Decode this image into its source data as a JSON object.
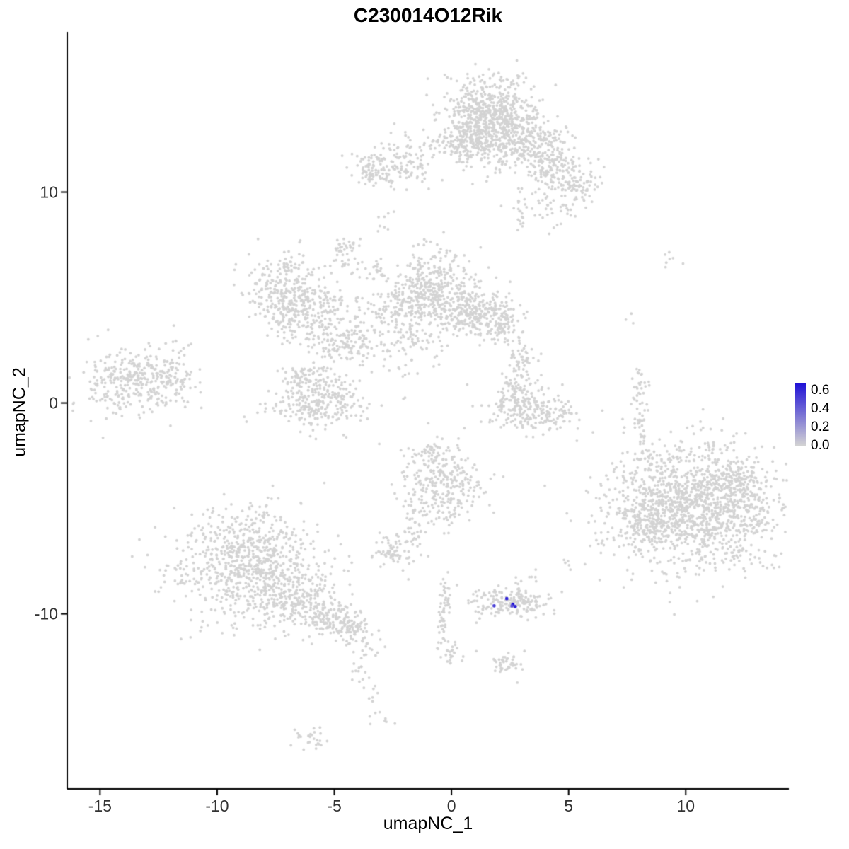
{
  "title": "C230014O12Rik",
  "x_axis": {
    "label": "umapNC_1",
    "ticks": [
      -15,
      -10,
      -5,
      0,
      5,
      10
    ]
  },
  "y_axis": {
    "label": "umapNC_2",
    "ticks": [
      -10,
      0,
      10
    ]
  },
  "legend": {
    "tick_labels": [
      "0.6",
      "0.4",
      "0.2",
      "0.0"
    ],
    "color_high": "#2012D6",
    "color_low": "#D3D3D3"
  },
  "chart_data": {
    "type": "scatter",
    "title": "C230014O12Rik",
    "xlabel": "umapNC_1",
    "ylabel": "umapNC_2",
    "xlim": [
      -16.4,
      14.4
    ],
    "ylim": [
      -18.3,
      17.6
    ],
    "legend_ticks": [
      0.6,
      0.4,
      0.2,
      0.0
    ],
    "legend_max": 0.65,
    "base_color": "#D3D3D3",
    "high_color": "#2012D6",
    "seed": 42,
    "clusters_format": "[center_x, center_y, sd_x, sd_y, n_points]",
    "clusters": [
      [
        1.6,
        13.5,
        1.05,
        0.95,
        750
      ],
      [
        0.8,
        12.3,
        0.55,
        0.45,
        120
      ],
      [
        2.9,
        12.0,
        0.7,
        0.5,
        110
      ],
      [
        4.3,
        11.1,
        0.75,
        0.6,
        160
      ],
      [
        5.3,
        10.3,
        0.45,
        0.4,
        70
      ],
      [
        3.9,
        12.5,
        0.5,
        0.4,
        70
      ],
      [
        4.6,
        9.3,
        0.9,
        0.5,
        45
      ],
      [
        -2.6,
        11.3,
        0.75,
        0.5,
        140
      ],
      [
        -3.4,
        10.9,
        0.3,
        0.3,
        35
      ],
      [
        -1.2,
        12.3,
        0.8,
        0.45,
        35
      ],
      [
        2.95,
        8.9,
        0.15,
        0.5,
        14
      ],
      [
        -2.9,
        8.6,
        0.2,
        0.3,
        8
      ],
      [
        -4.6,
        7.3,
        0.3,
        0.4,
        40
      ],
      [
        -7.1,
        5.4,
        0.85,
        0.8,
        280
      ],
      [
        -6.7,
        3.9,
        0.5,
        0.5,
        90
      ],
      [
        -5.5,
        4.6,
        0.55,
        0.5,
        80
      ],
      [
        -4.6,
        2.8,
        0.85,
        0.6,
        160
      ],
      [
        -0.9,
        5.2,
        1.0,
        0.95,
        480
      ],
      [
        0.9,
        4.3,
        0.7,
        0.6,
        200
      ],
      [
        2.0,
        3.9,
        0.5,
        0.5,
        110
      ],
      [
        -2.9,
        4.5,
        1.0,
        0.45,
        70
      ],
      [
        -1.8,
        2.7,
        0.5,
        0.7,
        55
      ],
      [
        -3.4,
        6.3,
        0.45,
        0.3,
        25
      ],
      [
        -13.5,
        1.0,
        1.15,
        0.8,
        340
      ],
      [
        -12.1,
        1.5,
        0.5,
        0.45,
        50
      ],
      [
        -11.7,
        2.6,
        0.3,
        0.2,
        7
      ],
      [
        -5.6,
        0.1,
        1.05,
        0.7,
        300
      ],
      [
        -6.4,
        1.3,
        0.5,
        0.3,
        45
      ],
      [
        3.0,
        1.6,
        0.35,
        0.75,
        80
      ],
      [
        3.4,
        -0.35,
        0.95,
        0.5,
        220
      ],
      [
        2.6,
        0.4,
        0.3,
        0.4,
        40
      ],
      [
        8.05,
        0.6,
        0.15,
        0.55,
        28
      ],
      [
        8.1,
        -0.9,
        0.13,
        0.5,
        22
      ],
      [
        8.15,
        -2.2,
        0.15,
        0.45,
        18
      ],
      [
        9.4,
        6.8,
        0.25,
        0.2,
        7
      ],
      [
        7.5,
        4.0,
        0.15,
        0.15,
        3
      ],
      [
        10.5,
        -4.9,
        1.9,
        1.5,
        1500
      ],
      [
        8.4,
        -5.6,
        0.6,
        0.5,
        120
      ],
      [
        12.3,
        -3.6,
        0.5,
        0.4,
        80
      ],
      [
        6.2,
        -6.9,
        0.15,
        0.15,
        3
      ],
      [
        -0.5,
        -3.9,
        0.85,
        0.95,
        300
      ],
      [
        -1.0,
        -2.5,
        0.3,
        0.3,
        30
      ],
      [
        -1.6,
        -6.3,
        0.25,
        0.9,
        45
      ],
      [
        -2.6,
        -7.0,
        0.4,
        0.35,
        60
      ],
      [
        -8.6,
        -7.6,
        1.55,
        1.35,
        850
      ],
      [
        -6.5,
        -9.4,
        0.8,
        0.6,
        160
      ],
      [
        -5.2,
        -10.2,
        0.6,
        0.45,
        130
      ],
      [
        -4.3,
        -10.8,
        0.4,
        0.3,
        60
      ],
      [
        -3.7,
        -11.7,
        0.3,
        0.3,
        18
      ],
      [
        -3.9,
        -12.8,
        0.25,
        0.3,
        12
      ],
      [
        -3.4,
        -14.0,
        0.2,
        0.3,
        6
      ],
      [
        2.4,
        -9.5,
        0.8,
        0.33,
        170
      ],
      [
        2.8,
        -8.7,
        0.3,
        0.25,
        12
      ],
      [
        5.0,
        -7.7,
        0.2,
        0.2,
        5
      ],
      [
        3.5,
        -8.1,
        0.15,
        0.15,
        4
      ],
      [
        -0.25,
        -9.1,
        0.15,
        0.5,
        30
      ],
      [
        -0.35,
        -10.7,
        0.13,
        0.55,
        26
      ],
      [
        -0.1,
        -11.95,
        0.3,
        0.25,
        25
      ],
      [
        2.4,
        -12.4,
        0.35,
        0.3,
        45
      ],
      [
        -3.2,
        -14.9,
        0.3,
        0.25,
        8
      ],
      [
        -6.0,
        -15.9,
        0.45,
        0.25,
        26
      ]
    ],
    "expressing_points": [
      {
        "x": 1.82,
        "y": -9.62,
        "value": 0.5
      },
      {
        "x": 2.36,
        "y": -9.28,
        "value": 0.6
      },
      {
        "x": 2.62,
        "y": -9.55,
        "value": 0.65
      },
      {
        "x": 2.72,
        "y": -9.66,
        "value": 0.6
      },
      {
        "x": 2.58,
        "y": -9.63,
        "value": 0.45
      }
    ]
  }
}
